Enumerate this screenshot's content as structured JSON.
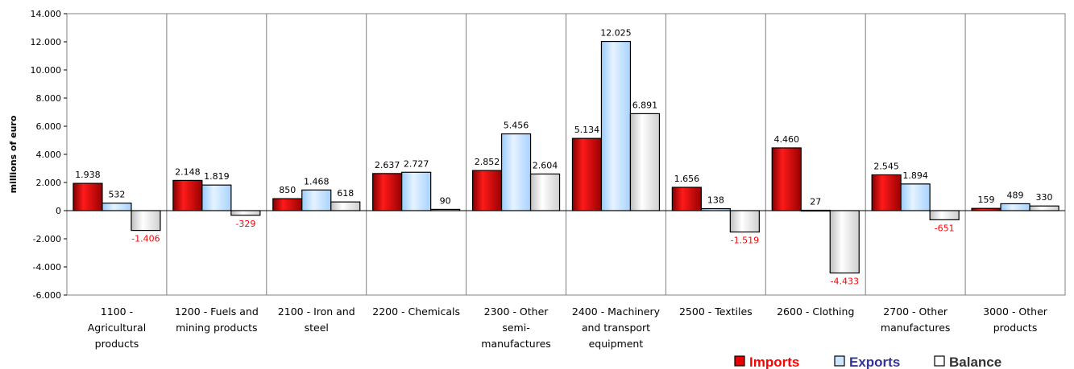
{
  "chart_data": {
    "type": "bar",
    "title": "",
    "xlabel": "",
    "ylabel": "millions of euro",
    "ylim": [
      -6000,
      14000
    ],
    "ytick_step": 2000,
    "ytick_labels": [
      "-6.000",
      "-4.000",
      "-2.000",
      "0",
      "2.000",
      "4.000",
      "6.000",
      "8.000",
      "10.000",
      "12.000",
      "14.000"
    ],
    "grid": "vertical category separators",
    "legend_position": "bottom-right",
    "categories": [
      [
        "1100 -",
        "Agricultural",
        "products"
      ],
      [
        "1200 - Fuels and",
        "mining products"
      ],
      [
        "2100 - Iron and",
        "steel"
      ],
      [
        "2200 - Chemicals"
      ],
      [
        "2300 - Other",
        "semi-",
        "manufactures"
      ],
      [
        "2400 - Machinery",
        "and transport",
        "equipment"
      ],
      [
        "2500 - Textiles"
      ],
      [
        "2600 - Clothing"
      ],
      [
        "2700 - Other",
        "manufactures"
      ],
      [
        "3000 - Other",
        "products"
      ]
    ],
    "series": [
      {
        "name": "Imports",
        "color": "#cc0000",
        "legend_color": "#ff0000",
        "values": [
          1938,
          2148,
          850,
          2637,
          2852,
          5134,
          1656,
          4460,
          2545,
          159
        ],
        "labels": [
          "1.938",
          "2.148",
          "850",
          "2.637",
          "2.852",
          "5.134",
          "1.656",
          "4.460",
          "2.545",
          "159"
        ]
      },
      {
        "name": "Exports",
        "color": "#cce6ff",
        "legend_color": "#333399",
        "values": [
          532,
          1819,
          1468,
          2727,
          5456,
          12025,
          138,
          27,
          1894,
          489
        ],
        "labels": [
          "532",
          "1.819",
          "1.468",
          "2.727",
          "5.456",
          "12.025",
          "138",
          "27",
          "1.894",
          "489"
        ]
      },
      {
        "name": "Balance",
        "color": "#f2f2f2",
        "legend_color": "#333333",
        "values": [
          -1406,
          -329,
          618,
          90,
          2604,
          6891,
          -1519,
          -4433,
          -651,
          330
        ],
        "labels": [
          "-1.406",
          "-329",
          "618",
          "90",
          "2.604",
          "6.891",
          "-1.519",
          "-4.433",
          "-651",
          "330"
        ]
      }
    ],
    "negative_label_color": "#ff0000"
  }
}
